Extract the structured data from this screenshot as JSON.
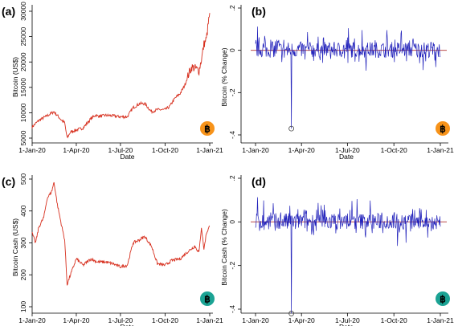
{
  "chart_data": [
    {
      "panel": "(a)",
      "type": "line",
      "xlabel": "Date",
      "ylabel": "Bitcoin (US$)",
      "xticks": [
        "1-Jan-20",
        "1-Apr-20",
        "1-Jul-20",
        "1-Oct-20",
        "1-Jan-21"
      ],
      "ylim": [
        5000,
        30000
      ],
      "yticks": [
        "5000",
        "10000",
        "15000",
        "20000",
        "25000",
        "30000"
      ],
      "line_color": "#d7301f",
      "badge_icon": "bitcoin-icon",
      "badge_color": "#f7931a",
      "x": [
        "2020-01-01",
        "2020-01-15",
        "2020-02-01",
        "2020-02-15",
        "2020-03-01",
        "2020-03-08",
        "2020-03-13",
        "2020-03-20",
        "2020-04-01",
        "2020-04-15",
        "2020-05-01",
        "2020-05-10",
        "2020-05-20",
        "2020-06-01",
        "2020-06-15",
        "2020-07-01",
        "2020-07-15",
        "2020-07-27",
        "2020-08-10",
        "2020-08-20",
        "2020-09-03",
        "2020-09-15",
        "2020-10-01",
        "2020-10-10",
        "2020-10-21",
        "2020-11-01",
        "2020-11-10",
        "2020-11-20",
        "2020-11-25",
        "2020-12-01",
        "2020-12-10",
        "2020-12-16",
        "2020-12-20",
        "2020-12-25",
        "2020-12-31"
      ],
      "values": [
        7200,
        8500,
        9400,
        10200,
        8600,
        8000,
        5000,
        6200,
        6600,
        7000,
        8800,
        9500,
        9300,
        9500,
        9400,
        9200,
        9200,
        11000,
        11800,
        11800,
        10200,
        10600,
        10600,
        11200,
        12800,
        13800,
        15300,
        18000,
        19000,
        18800,
        18300,
        21000,
        23500,
        24500,
        29000
      ]
    },
    {
      "panel": "(b)",
      "type": "line",
      "xlabel": "Date",
      "ylabel": "Bitcoin (% Change)",
      "xticks": [
        "1-Jan-20",
        "1-Apr-20",
        "1-Jul-20",
        "1-Oct-20",
        "1-Jan-21"
      ],
      "ylim": [
        -0.4,
        0.2
      ],
      "yticks": [
        "-.4",
        "-.2",
        "0",
        ".2"
      ],
      "line_color": "#2222bb",
      "zero_line_color": "#b03030",
      "badge_icon": "bitcoin-icon",
      "badge_color": "#f7931a",
      "outlier": {
        "x": "2020-03-12",
        "y": -0.37
      }
    },
    {
      "panel": "(c)",
      "type": "line",
      "xlabel": "Date",
      "ylabel": "Bitcoin Cash (US$)",
      "xticks": [
        "1-Jan-20",
        "1-Apr-20",
        "1-Jul-20",
        "1-Oct-20",
        "1-Jan-21"
      ],
      "ylim": [
        100,
        500
      ],
      "yticks": [
        "100",
        "200",
        "300",
        "400",
        "500"
      ],
      "line_color": "#d7301f",
      "badge_icon": "bitcoin-cash-icon",
      "badge_color": "#1ba394",
      "x": [
        "2020-01-01",
        "2020-01-08",
        "2020-01-15",
        "2020-01-25",
        "2020-02-01",
        "2020-02-10",
        "2020-02-15",
        "2020-02-22",
        "2020-03-01",
        "2020-03-08",
        "2020-03-13",
        "2020-03-20",
        "2020-04-01",
        "2020-04-15",
        "2020-05-01",
        "2020-05-15",
        "2020-06-01",
        "2020-06-15",
        "2020-07-01",
        "2020-07-15",
        "2020-07-27",
        "2020-08-10",
        "2020-08-20",
        "2020-09-03",
        "2020-09-15",
        "2020-10-01",
        "2020-10-15",
        "2020-11-01",
        "2020-11-15",
        "2020-12-01",
        "2020-12-10",
        "2020-12-15",
        "2020-12-20",
        "2020-12-25",
        "2020-12-31"
      ],
      "values": [
        330,
        300,
        350,
        380,
        440,
        460,
        490,
        420,
        360,
        310,
        170,
        200,
        250,
        230,
        250,
        240,
        240,
        235,
        225,
        230,
        300,
        310,
        320,
        290,
        235,
        230,
        245,
        250,
        270,
        290,
        270,
        350,
        280,
        330,
        350
      ]
    },
    {
      "panel": "(d)",
      "type": "line",
      "xlabel": "Date",
      "ylabel": "Bitcoin Cash (% Change)",
      "xticks": [
        "1-Jan-20",
        "1-Apr-20",
        "1-Jul-20",
        "1-Oct-20",
        "1-Jan-21"
      ],
      "ylim": [
        -0.4,
        0.2
      ],
      "yticks": [
        "-.4",
        "-.2",
        "0",
        ".2"
      ],
      "line_color": "#2222bb",
      "zero_line_color": "#b03030",
      "badge_icon": "bitcoin-cash-icon",
      "badge_color": "#1ba394",
      "outlier": {
        "x": "2020-03-12",
        "y": -0.42
      }
    }
  ]
}
